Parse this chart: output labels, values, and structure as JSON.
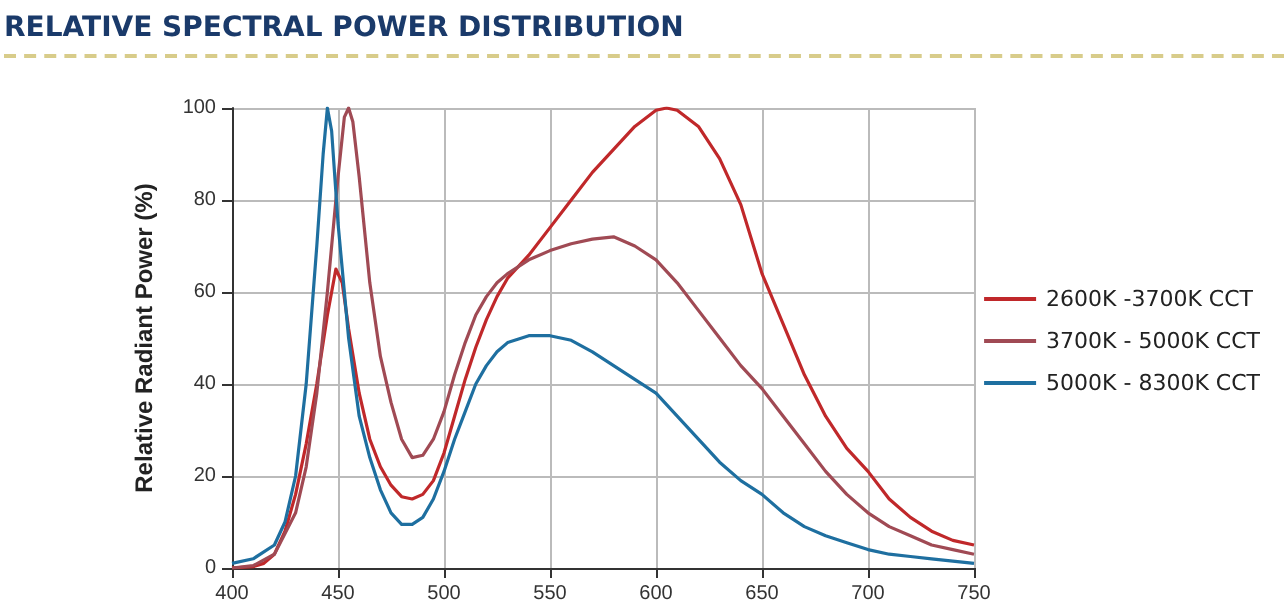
{
  "chart_data": {
    "type": "line",
    "title": "RELATIVE SPECTRAL POWER DISTRIBUTION",
    "ylabel": "Relative Radiant Power (%)",
    "xlim": [
      400,
      750
    ],
    "xticks": [
      400,
      450,
      500,
      550,
      600,
      650,
      700,
      750
    ],
    "ylim": [
      0,
      100
    ],
    "yticks": [
      0,
      20,
      40,
      60,
      80,
      100
    ],
    "grid": true,
    "legend": "right",
    "marker": "none",
    "line_style": "solid",
    "series": [
      {
        "name": "2600K -3700K CCT",
        "color": "#c0282a",
        "x": [
          400,
          410,
          415,
          420,
          425,
          430,
          435,
          440,
          445,
          449,
          452,
          455,
          460,
          465,
          470,
          475,
          480,
          485,
          490,
          495,
          500,
          505,
          510,
          515,
          520,
          525,
          530,
          540,
          550,
          560,
          570,
          580,
          590,
          600,
          605,
          610,
          620,
          630,
          640,
          650,
          660,
          670,
          680,
          690,
          700,
          710,
          720,
          730,
          740,
          750
        ],
        "values": [
          0,
          0.3,
          1,
          3,
          8,
          16,
          27,
          40,
          55,
          65,
          62,
          52,
          38,
          28,
          22,
          18,
          15.5,
          15,
          16,
          19,
          25,
          33,
          41,
          48,
          54,
          59,
          63,
          68,
          74,
          80,
          86,
          91,
          96,
          99.5,
          100,
          99.5,
          96,
          89,
          79,
          64,
          53,
          42,
          33,
          26,
          21,
          15,
          11,
          8,
          6,
          5
        ]
      },
      {
        "name": "3700K - 5000K CCT",
        "color": "#a04a54",
        "x": [
          400,
          410,
          420,
          430,
          435,
          440,
          445,
          450,
          453,
          455,
          457,
          460,
          465,
          470,
          475,
          480,
          485,
          490,
          495,
          500,
          505,
          510,
          515,
          520,
          525,
          530,
          540,
          550,
          560,
          570,
          580,
          590,
          600,
          610,
          620,
          630,
          640,
          650,
          660,
          670,
          680,
          690,
          700,
          710,
          720,
          730,
          740,
          750
        ],
        "values": [
          0,
          0.5,
          3,
          12,
          22,
          38,
          60,
          85,
          98,
          100,
          97,
          85,
          62,
          46,
          36,
          28,
          24,
          24.5,
          28,
          34,
          42,
          49,
          55,
          59,
          62,
          64,
          67,
          69,
          70.5,
          71.5,
          72,
          70,
          67,
          62,
          56,
          50,
          44,
          39,
          33,
          27,
          21,
          16,
          12,
          9,
          7,
          5,
          4,
          3
        ]
      },
      {
        "name": "5000K - 8300K CCT",
        "color": "#1e6fa0",
        "x": [
          400,
          410,
          420,
          425,
          430,
          435,
          440,
          443,
          445,
          447,
          450,
          455,
          460,
          465,
          470,
          475,
          480,
          485,
          490,
          495,
          500,
          505,
          510,
          515,
          520,
          525,
          530,
          540,
          550,
          560,
          570,
          580,
          590,
          600,
          610,
          620,
          630,
          640,
          650,
          660,
          670,
          680,
          690,
          700,
          710,
          720,
          730,
          740,
          750
        ],
        "values": [
          1,
          2,
          5,
          10,
          20,
          40,
          70,
          90,
          100,
          95,
          75,
          50,
          33,
          24,
          17,
          12,
          9.5,
          9.5,
          11,
          15,
          21,
          28,
          34,
          40,
          44,
          47,
          49,
          50.5,
          50.5,
          49.5,
          47,
          44,
          41,
          38,
          33,
          28,
          23,
          19,
          16,
          12,
          9,
          7,
          5.5,
          4,
          3,
          2.5,
          2,
          1.5,
          1
        ]
      }
    ]
  }
}
